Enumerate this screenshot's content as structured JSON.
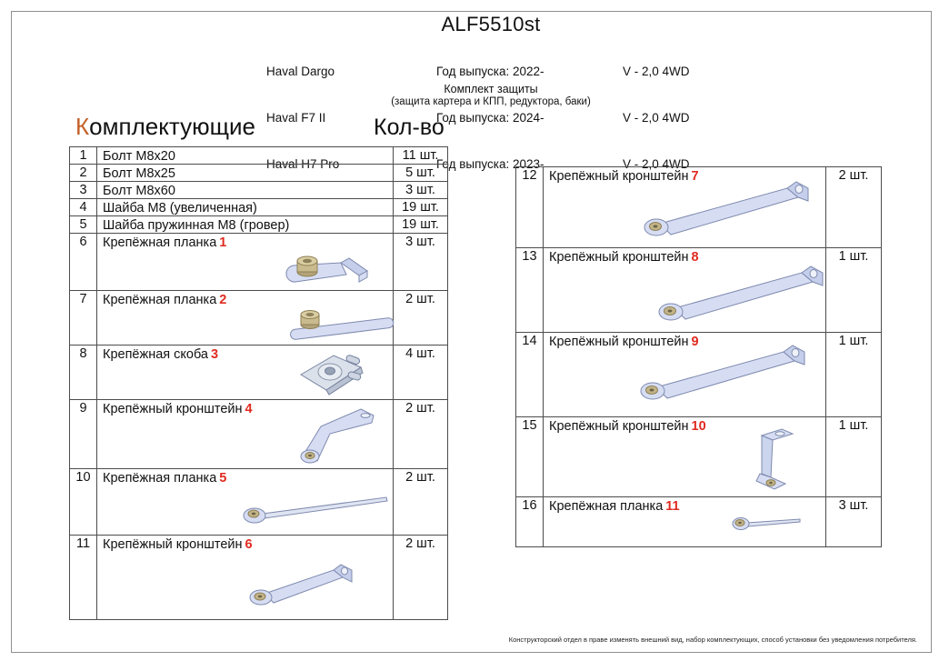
{
  "header": {
    "part_code": "ALF5510st",
    "vehicles": [
      {
        "model": "Haval Dargo",
        "year_label": "Год выпуска: 2022-",
        "engine": "V - 2,0 4WD"
      },
      {
        "model": "Haval F7 II",
        "year_label": "Год выпуска: 2024-",
        "engine": "V - 2,0 4WD"
      },
      {
        "model": "Haval H7 Pro",
        "year_label": "Год выпуска: 2023-",
        "engine": "V - 2,0 4WD"
      }
    ],
    "kit_title": "Комплект защиты",
    "kit_subtitle": "(защита картера и КПП, редуктора, баки)"
  },
  "section": {
    "components_title_first_letter": "К",
    "components_title_rest": "омплектующие",
    "qty_title": "Кол-во",
    "accent_color": "#c45f28",
    "part_number_color": "#e02b20"
  },
  "tables": {
    "left": {
      "rows": [
        {
          "num": "1",
          "name": "Болт М8х20",
          "part_no": "",
          "qty": "11 шт.",
          "shape": ""
        },
        {
          "num": "2",
          "name": "Болт М8х25",
          "part_no": "",
          "qty": "5 шт.",
          "shape": ""
        },
        {
          "num": "3",
          "name": "Болт М8х60",
          "part_no": "",
          "qty": "3 шт.",
          "shape": ""
        },
        {
          "num": "4",
          "name": "Шайба М8 (увеличенная)",
          "part_no": "",
          "qty": "19 шт.",
          "shape": ""
        },
        {
          "num": "5",
          "name": "Шайба пружинная М8 (гровер)",
          "part_no": "",
          "qty": "19 шт.",
          "shape": ""
        },
        {
          "num": "6",
          "name": "Крепёжная планка",
          "part_no": "1",
          "qty": "3 шт.",
          "shape": "angle-plate-with-nut-icon"
        },
        {
          "num": "7",
          "name": "Крепёжная планка",
          "part_no": "2",
          "qty": "2 шт.",
          "shape": "flat-strip-with-nut-icon"
        },
        {
          "num": "8",
          "name": "Крепёжная скоба",
          "part_no": "3",
          "qty": "4 шт.",
          "shape": "speed-clip-icon"
        },
        {
          "num": "9",
          "name": "Крепёжный кронштейн",
          "part_no": "4",
          "qty": "2 шт.",
          "shape": "angle-bracket-icon"
        },
        {
          "num": "10",
          "name": "Крепёжная планка",
          "part_no": "5",
          "qty": "2 шт.",
          "shape": "long-rod-eyelet-icon"
        },
        {
          "num": "11",
          "name": "Крепёжный кронштейн",
          "part_no": "6",
          "qty": "2 шт.",
          "shape": "strap-bracket-icon"
        }
      ]
    },
    "right": {
      "rows": [
        {
          "num": "12",
          "name": "Крепёжный кронштейн",
          "part_no": "7",
          "qty": "2 шт.",
          "shape": "strap-bracket-long-icon"
        },
        {
          "num": "13",
          "name": "Крепёжный кронштейн",
          "part_no": "8",
          "qty": "1 шт.",
          "shape": "strap-bracket-long-icon"
        },
        {
          "num": "14",
          "name": "Крепёжный кронштейн",
          "part_no": "9",
          "qty": "1 шт.",
          "shape": "strap-bracket-long-icon"
        },
        {
          "num": "15",
          "name": "Крепёжный кронштейн",
          "part_no": "10",
          "qty": "1 шт.",
          "shape": "z-bracket-vertical-icon"
        },
        {
          "num": "16",
          "name": "Крепёжная планка",
          "part_no": "11",
          "qty": "3 шт.",
          "shape": "short-rod-eyelet-icon"
        }
      ]
    }
  },
  "footer": {
    "disclaimer": "Конструкторский отдел в праве изменять внешний вид, набор комплектующих, способ установки без уведомления потребителя."
  }
}
